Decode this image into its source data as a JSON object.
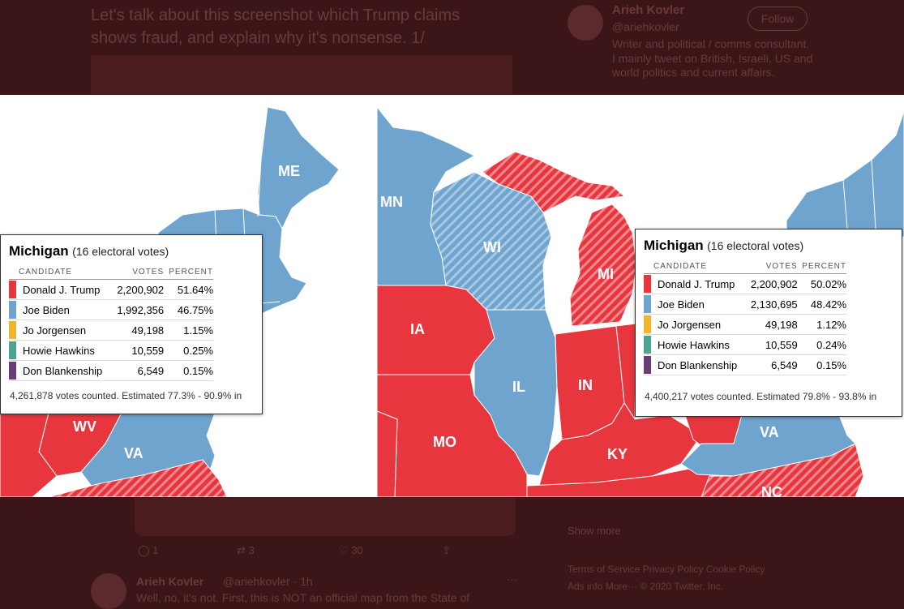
{
  "background": {
    "tweet_text_line1": "Let's talk about this screenshot which Trump claims",
    "tweet_text_line2": "shows fraud, and explain why it's nonsense. 1/",
    "profile_name": "Arieh Kovler",
    "profile_handle": "@ariehkovler",
    "follow_label": "Follow",
    "bio": "Writer and political / comms consultant. I mainly tweet on British, Israeli, US and world politics and current affairs.",
    "reply_count": "1",
    "retweet_count": "3",
    "like_count": "30",
    "show_more": "Show more",
    "footer_links": "Terms of Service   Privacy Policy   Cookie Policy",
    "footer_links2": "Ads info   More···   © 2020 Twitter, Inc.",
    "reply_author": "Arieh Kovler",
    "reply_handle": "@ariehkovler · 1h",
    "reply_text": "Well, no, it's not. First, this is NOT an official map from the State of"
  },
  "colors": {
    "red": "#e8363f",
    "blue": "#6fa4cf",
    "yellow": "#f2b42c",
    "teal": "#4aa48f",
    "purple": "#6a3c78"
  },
  "left_map": {
    "labels": [
      "ME",
      "WV",
      "VA"
    ]
  },
  "right_map": {
    "labels": [
      "MN",
      "WI",
      "MI",
      "IA",
      "IL",
      "IN",
      "MO",
      "KY",
      "VA",
      "NC"
    ]
  },
  "popup_columns": {
    "candidate": "CANDIDATE",
    "votes": "VOTES",
    "percent": "PERCENT"
  },
  "left_popup": {
    "state": "Michigan",
    "electoral": "(16 electoral votes)",
    "rows": [
      {
        "name": "Donald J. Trump",
        "votes": "2,200,902",
        "percent": "51.64%"
      },
      {
        "name": "Joe Biden",
        "votes": "1,992,356",
        "percent": "46.75%"
      },
      {
        "name": "Jo Jorgensen",
        "votes": "49,198",
        "percent": "1.15%"
      },
      {
        "name": "Howie Hawkins",
        "votes": "10,559",
        "percent": "0.25%"
      },
      {
        "name": "Don Blankenship",
        "votes": "6,549",
        "percent": "0.15%"
      }
    ],
    "footer": "4,261,878 votes counted. Estimated 77.3% - 90.9% in"
  },
  "right_popup": {
    "state": "Michigan",
    "electoral": "(16 electoral votes)",
    "rows": [
      {
        "name": "Donald J. Trump",
        "votes": "2,200,902",
        "percent": "50.02%"
      },
      {
        "name": "Joe Biden",
        "votes": "2,130,695",
        "percent": "48.42%"
      },
      {
        "name": "Jo Jorgensen",
        "votes": "49,198",
        "percent": "1.12%"
      },
      {
        "name": "Howie Hawkins",
        "votes": "10,559",
        "percent": "0.24%"
      },
      {
        "name": "Don Blankenship",
        "votes": "6,549",
        "percent": "0.15%"
      }
    ],
    "footer": "4,400,217 votes counted. Estimated 79.8% - 93.8% in"
  }
}
